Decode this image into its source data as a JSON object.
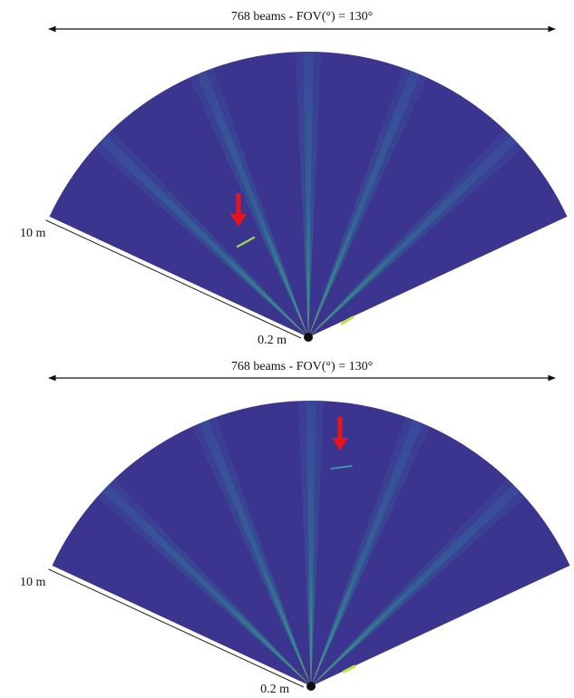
{
  "panels": [
    {
      "fov_label": "768 beams - FOV(°) = 130°",
      "range_max": "10 m",
      "range_min": "0.2 m"
    },
    {
      "fov_label": "768 beams - FOV(°) = 130°",
      "range_max": "10 m",
      "range_min": "0.2 m"
    }
  ]
}
